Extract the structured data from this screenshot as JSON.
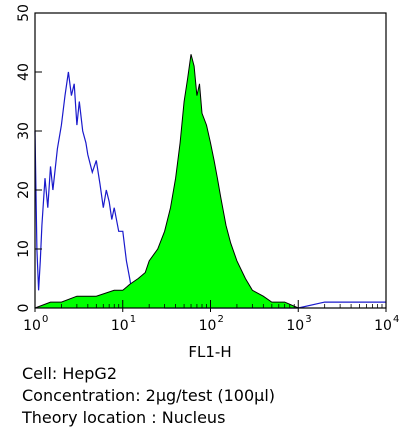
{
  "chart_data": {
    "type": "area",
    "xlabel": "FL1-H",
    "ylabel": "",
    "title": "",
    "x_scale": "log",
    "xlim": [
      1,
      10000
    ],
    "ylim": [
      0,
      50
    ],
    "grid": false,
    "x_ticks": [
      {
        "value": 1,
        "base": "10",
        "exp": "0"
      },
      {
        "value": 10,
        "base": "10",
        "exp": "1"
      },
      {
        "value": 100,
        "base": "10",
        "exp": "2"
      },
      {
        "value": 1000,
        "base": "10",
        "exp": "3"
      },
      {
        "value": 10000,
        "base": "10",
        "exp": "4"
      }
    ],
    "y_ticks": [
      0,
      10,
      20,
      30,
      40,
      50
    ],
    "series": [
      {
        "role": "control",
        "style": "line",
        "color": "#1a1acc",
        "x": [
          1,
          1.05,
          1.1,
          1.15,
          1.2,
          1.3,
          1.4,
          1.5,
          1.6,
          1.8,
          2.0,
          2.2,
          2.4,
          2.6,
          2.8,
          3.0,
          3.2,
          3.5,
          3.8,
          4.0,
          4.5,
          5.0,
          5.5,
          6.0,
          6.5,
          7.0,
          7.5,
          8.0,
          9.0,
          10,
          11,
          12,
          13,
          15,
          17,
          20,
          25,
          30,
          40,
          60,
          100,
          200,
          500,
          1000,
          2000,
          5000,
          10000
        ],
        "values": [
          30,
          10,
          3,
          8,
          14,
          22,
          17,
          24,
          20,
          27,
          31,
          36,
          40,
          36,
          38,
          31,
          35,
          30,
          28,
          26,
          23,
          25,
          21,
          17,
          20,
          18,
          15,
          17,
          13,
          13,
          8,
          5,
          2,
          3,
          1,
          1,
          1,
          0,
          0,
          0,
          0,
          0,
          0,
          0,
          1,
          1,
          1
        ]
      },
      {
        "role": "sample",
        "style": "filled",
        "color": "#00ff00",
        "x": [
          1,
          1.5,
          2,
          3,
          5,
          8,
          10,
          12,
          15,
          18,
          20,
          25,
          30,
          35,
          40,
          45,
          50,
          55,
          60,
          65,
          70,
          75,
          80,
          90,
          100,
          110,
          120,
          130,
          150,
          170,
          200,
          250,
          300,
          400,
          500,
          700,
          1000,
          2000,
          5000,
          10000
        ],
        "values": [
          0,
          1,
          1,
          2,
          2,
          3,
          3,
          4,
          5,
          6,
          8,
          10,
          13,
          17,
          22,
          28,
          35,
          39,
          43,
          41,
          36,
          38,
          33,
          31,
          28,
          25,
          22,
          19,
          14,
          11,
          8,
          5,
          3,
          2,
          1,
          1,
          0,
          0,
          0,
          0
        ]
      }
    ]
  },
  "caption": {
    "line1": "Cell: HepG2",
    "line2": "Concentration: 2µg/test (100µl)",
    "line3": "Theory location : Nucleus"
  }
}
